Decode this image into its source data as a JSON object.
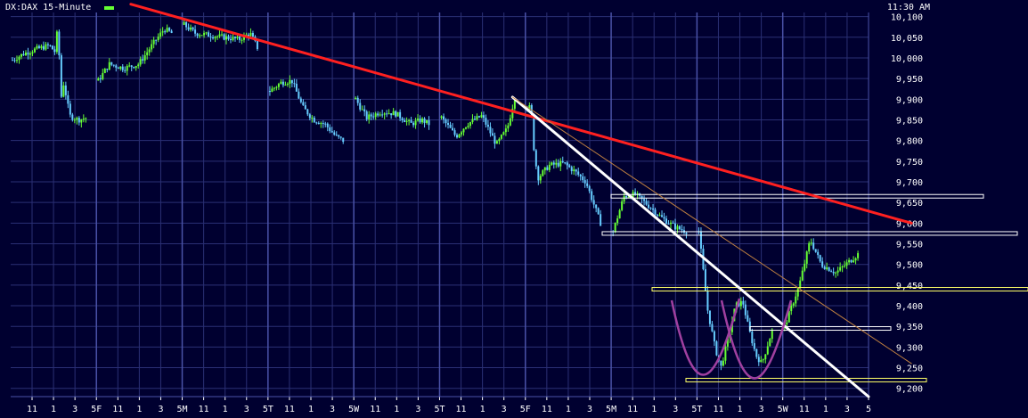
{
  "header": {
    "symbol": "DX:DAX 15-Minute",
    "time": "11:30 AM"
  },
  "colors": {
    "background": "#000030",
    "grid": "#2a2f74",
    "axis_text": "#ffffff",
    "candle_up": "#66ff33",
    "candle_down": "#66ccff",
    "major_trend": "#ff2020",
    "minor_trend": "#ffffff",
    "thin_trend": "#c08040",
    "resistance": "#ffffff",
    "support_highlight": "#ffff66",
    "pattern_curve": "#a040a0"
  },
  "chart_data": {
    "type": "candlestick",
    "title": "DX:DAX 15-Minute",
    "ylim": [
      9180,
      10110
    ],
    "y_ticks": [
      "10,100",
      "10,050",
      "10,000",
      "9,950",
      "9,900",
      "9,850",
      "9,800",
      "9,750",
      "9,700",
      "9,650",
      "9,600",
      "9,550",
      "9,500",
      "9,450",
      "9,400",
      "9,350",
      "9,300",
      "9,250",
      "9,200"
    ],
    "x_tick_labels": [
      "11",
      "1",
      "3",
      "5F",
      "11",
      "1",
      "3",
      "5M",
      "11",
      "1",
      "3",
      "5T",
      "11",
      "1",
      "3",
      "5W",
      "11",
      "1",
      "3",
      "5T",
      "11",
      "1",
      "3",
      "5F",
      "11",
      "1",
      "3",
      "5M",
      "11",
      "1",
      "3",
      "5T",
      "11",
      "1",
      "3",
      "5W",
      "11",
      "1",
      "3",
      "5"
    ],
    "sessions": [
      {
        "day": "Th",
        "path": [
          [
            0,
            9995
          ],
          [
            0.15,
            10010
          ],
          [
            0.3,
            10020
          ],
          [
            0.5,
            10030
          ],
          [
            0.58,
            10015
          ],
          [
            0.62,
            10080
          ],
          [
            0.66,
            9900
          ],
          [
            0.7,
            9940
          ],
          [
            0.78,
            9860
          ],
          [
            0.9,
            9850
          ],
          [
            1.0,
            9855
          ]
        ]
      },
      {
        "day": "F",
        "path": [
          [
            0,
            9945
          ],
          [
            0.15,
            9985
          ],
          [
            0.35,
            9975
          ],
          [
            0.55,
            9985
          ],
          [
            0.75,
            10035
          ],
          [
            0.9,
            10070
          ],
          [
            1.0,
            10060
          ]
        ]
      },
      {
        "day": "M",
        "path": [
          [
            0,
            10080
          ],
          [
            0.15,
            10060
          ],
          [
            0.35,
            10055
          ],
          [
            0.55,
            10050
          ],
          [
            0.75,
            10045
          ],
          [
            0.9,
            10060
          ],
          [
            1.0,
            10025
          ]
        ]
      },
      {
        "day": "T",
        "path": [
          [
            0,
            9920
          ],
          [
            0.15,
            9940
          ],
          [
            0.3,
            9945
          ],
          [
            0.45,
            9880
          ],
          [
            0.6,
            9850
          ],
          [
            0.75,
            9840
          ],
          [
            0.9,
            9810
          ],
          [
            1.0,
            9800
          ]
        ]
      },
      {
        "day": "W",
        "path": [
          [
            0,
            9900
          ],
          [
            0.15,
            9855
          ],
          [
            0.35,
            9870
          ],
          [
            0.55,
            9865
          ],
          [
            0.75,
            9840
          ],
          [
            0.9,
            9850
          ],
          [
            1.0,
            9840
          ]
        ]
      },
      {
        "day": "Th",
        "path": [
          [
            0,
            9855
          ],
          [
            0.2,
            9810
          ],
          [
            0.35,
            9840
          ],
          [
            0.55,
            9860
          ],
          [
            0.75,
            9790
          ],
          [
            0.9,
            9830
          ],
          [
            1.0,
            9905
          ]
        ]
      },
      {
        "day": "F",
        "path": [
          [
            0,
            9880
          ],
          [
            0.05,
            9880
          ],
          [
            0.1,
            9760
          ],
          [
            0.15,
            9710
          ],
          [
            0.3,
            9740
          ],
          [
            0.5,
            9745
          ],
          [
            0.65,
            9725
          ],
          [
            0.8,
            9700
          ],
          [
            1.0,
            9600
          ]
        ]
      },
      {
        "day": "M",
        "path": [
          [
            0,
            9580
          ],
          [
            0.15,
            9665
          ],
          [
            0.3,
            9670
          ],
          [
            0.5,
            9640
          ],
          [
            0.65,
            9615
          ],
          [
            0.85,
            9590
          ],
          [
            1.0,
            9580
          ]
        ]
      },
      {
        "day": "T",
        "path": [
          [
            0,
            9580
          ],
          [
            0.12,
            9390
          ],
          [
            0.22,
            9300
          ],
          [
            0.3,
            9250
          ],
          [
            0.4,
            9320
          ],
          [
            0.5,
            9400
          ],
          [
            0.6,
            9410
          ],
          [
            0.68,
            9345
          ],
          [
            0.78,
            9280
          ],
          [
            0.86,
            9260
          ],
          [
            1.0,
            9340
          ]
        ]
      },
      {
        "day": "W",
        "path": [
          [
            0,
            9350
          ],
          [
            0.2,
            9450
          ],
          [
            0.35,
            9560
          ],
          [
            0.5,
            9500
          ],
          [
            0.7,
            9480
          ],
          [
            1.0,
            9525
          ]
        ]
      }
    ],
    "annotations": {
      "trendlines": [
        {
          "name": "major-downtrend",
          "from": [
            0.14,
            10130
          ],
          "to": [
            1.05,
            9600
          ]
        },
        {
          "name": "steep-downtrend",
          "from": [
            0.585,
            9905
          ],
          "to": [
            1.0,
            9180
          ]
        },
        {
          "name": "thin-downtrend",
          "from": [
            0.585,
            9905
          ],
          "to": [
            1.05,
            9260
          ]
        }
      ],
      "horizontal_levels": [
        9665,
        9575,
        9440,
        9345,
        9220
      ],
      "pattern": "double bottom"
    }
  }
}
